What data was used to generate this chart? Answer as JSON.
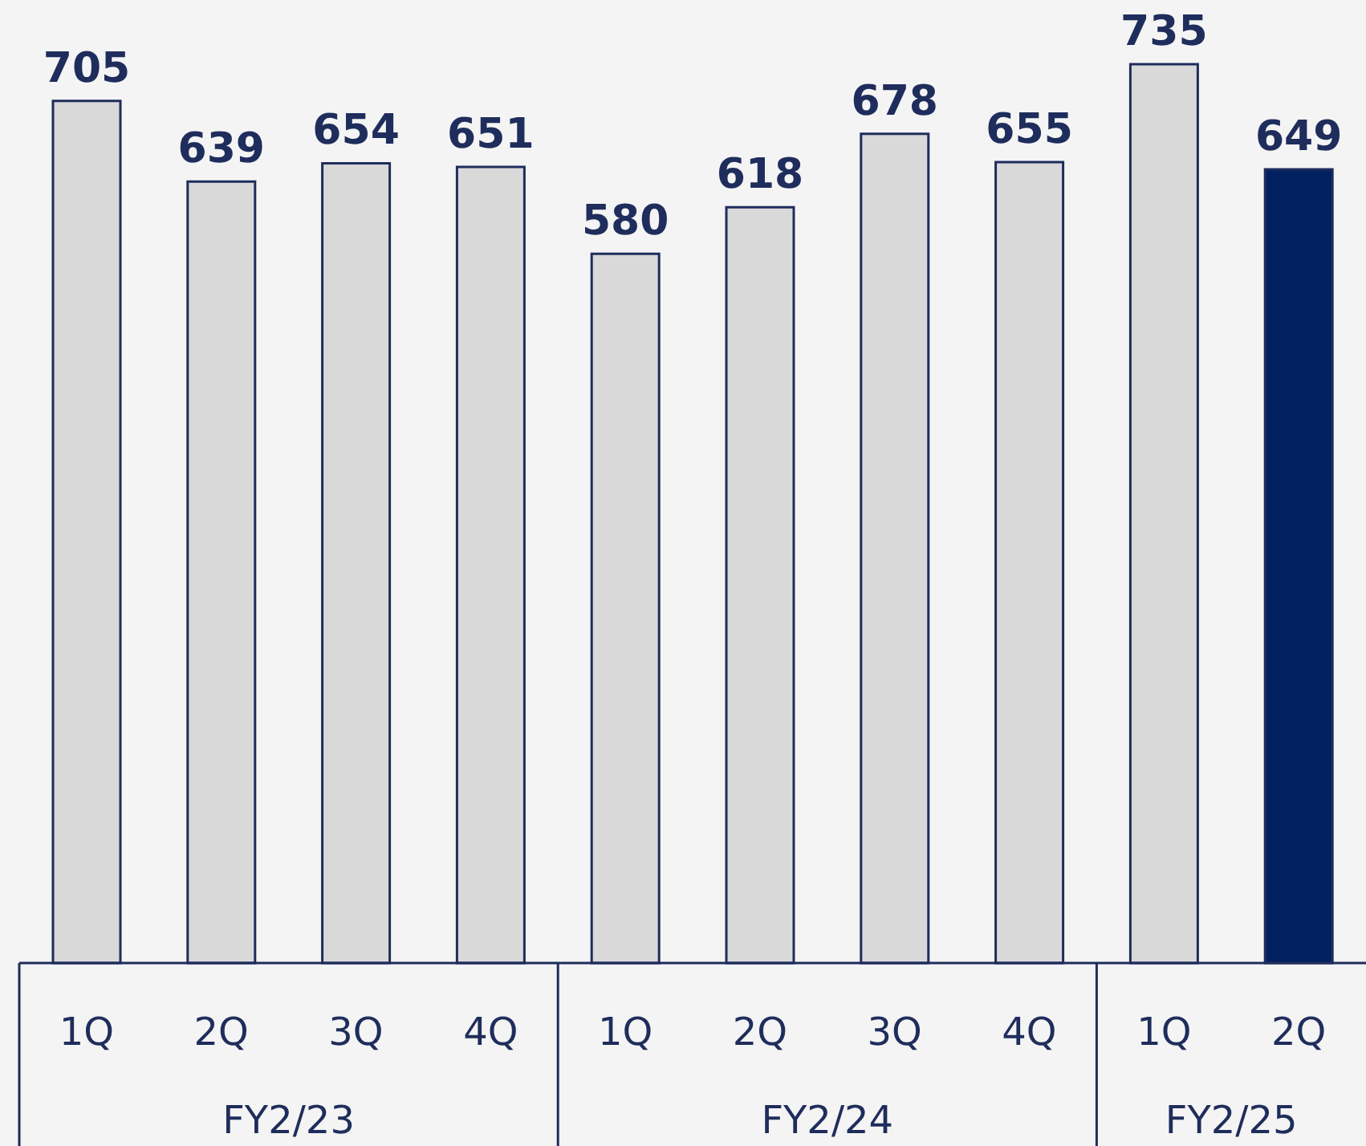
{
  "chart_data": {
    "type": "bar",
    "categories": [
      "1Q",
      "2Q",
      "3Q",
      "4Q",
      "1Q",
      "2Q",
      "3Q",
      "4Q",
      "1Q",
      "2Q"
    ],
    "values": [
      705,
      639,
      654,
      651,
      580,
      618,
      678,
      655,
      735,
      649
    ],
    "colors": [
      "#d9d9d9",
      "#d9d9d9",
      "#d9d9d9",
      "#d9d9d9",
      "#d9d9d9",
      "#d9d9d9",
      "#d9d9d9",
      "#d9d9d9",
      "#d9d9d9",
      "#002060"
    ],
    "data_labels": true,
    "annotations": [
      "FY2/23",
      "FY2/24",
      "FY2/25"
    ]
  }
}
